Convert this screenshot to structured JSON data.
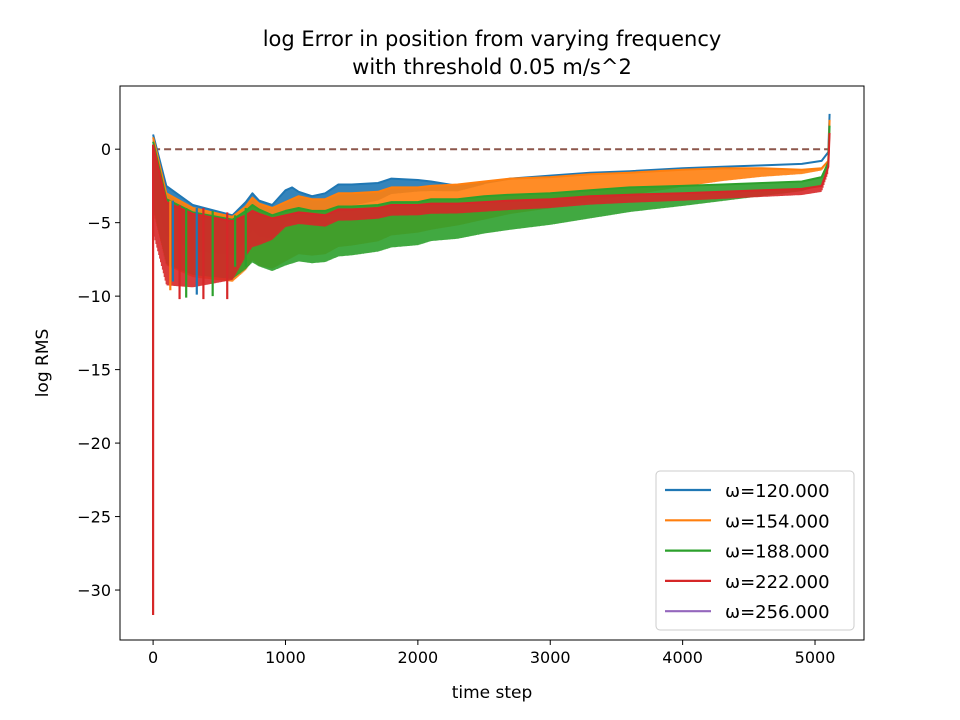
{
  "chart_data": {
    "type": "line",
    "title_line1": "log Error in position from varying frequency",
    "title_line2": "with threshold 0.05 m/s^2",
    "xlabel": "time step",
    "ylabel": "log RMS",
    "xlim": [
      -250,
      5370
    ],
    "ylim": [
      -33.4,
      4.3
    ],
    "xticks": [
      0,
      1000,
      2000,
      3000,
      4000,
      5000
    ],
    "xtick_labels": [
      "0",
      "1000",
      "2000",
      "3000",
      "4000",
      "5000"
    ],
    "yticks": [
      0,
      -5,
      -10,
      -15,
      -20,
      -25,
      -30
    ],
    "ytick_labels": [
      "0",
      "−5",
      "−10",
      "−15",
      "−20",
      "−25",
      "−30"
    ],
    "legend_position": "lower-right",
    "reference_line": {
      "y": 0,
      "x": [
        0,
        5100
      ],
      "color": "#8c564b",
      "style": "dashed"
    },
    "series": [
      {
        "name": "ω=120.000",
        "color": "#1f77b4",
        "x": [
          0,
          100,
          300,
          600,
          700,
          750,
          800,
          900,
          1000,
          1050,
          1100,
          1200,
          1300,
          1400,
          1500,
          1700,
          1800,
          2000,
          2100,
          2300,
          2500,
          2700,
          3000,
          3300,
          3600,
          4000,
          4300,
          4600,
          4900,
          5050,
          5100,
          5110
        ],
        "y": [
          1.0,
          -2.5,
          -3.8,
          -4.5,
          -3.6,
          -3.0,
          -3.5,
          -3.8,
          -2.8,
          -2.6,
          -2.9,
          -3.2,
          -3.0,
          -2.4,
          -2.4,
          -2.3,
          -2.0,
          -2.1,
          -2.2,
          -2.5,
          -2.3,
          -2.0,
          -1.8,
          -1.6,
          -1.5,
          -1.3,
          -1.2,
          -1.1,
          -1.0,
          -0.8,
          -0.2,
          2.4
        ],
        "oscillation": {
          "x": [
            0,
            2500
          ],
          "amplitude_low": [
            3.5,
            0.1
          ]
        }
      },
      {
        "name": "ω=154.000",
        "color": "#ff7f0e",
        "x": [
          0,
          100,
          300,
          600,
          700,
          750,
          800,
          900,
          1000,
          1100,
          1200,
          1300,
          1400,
          1500,
          1700,
          1800,
          2000,
          2100,
          2300,
          2500,
          2700,
          3000,
          3300,
          3600,
          4000,
          4300,
          4600,
          4900,
          5050,
          5100,
          5110
        ],
        "y": [
          0.8,
          -3.0,
          -4.0,
          -4.6,
          -3.9,
          -3.3,
          -3.7,
          -4.0,
          -3.6,
          -3.2,
          -3.4,
          -3.4,
          -3.0,
          -3.0,
          -2.9,
          -2.6,
          -2.6,
          -2.5,
          -2.4,
          -2.2,
          -2.0,
          -1.9,
          -1.7,
          -1.6,
          -1.4,
          -1.3,
          -1.3,
          -1.4,
          -1.3,
          -0.8,
          2.0
        ],
        "oscillation": {
          "x": [
            0,
            5100
          ],
          "amplitude_low": [
            5.0,
            0.1
          ]
        }
      },
      {
        "name": "ω=188.000",
        "color": "#2ca02c",
        "x": [
          0,
          100,
          300,
          600,
          700,
          750,
          800,
          900,
          1000,
          1100,
          1200,
          1300,
          1400,
          1500,
          1700,
          1800,
          2000,
          2100,
          2300,
          2500,
          2700,
          3000,
          3300,
          3600,
          4000,
          4300,
          4600,
          4900,
          5050,
          5100,
          5110
        ],
        "y": [
          0.5,
          -3.4,
          -4.3,
          -4.8,
          -4.2,
          -3.8,
          -4.1,
          -4.5,
          -4.2,
          -4.0,
          -4.2,
          -4.2,
          -3.9,
          -3.9,
          -3.8,
          -3.6,
          -3.6,
          -3.4,
          -3.4,
          -3.2,
          -3.1,
          -3.0,
          -2.8,
          -2.6,
          -2.5,
          -2.4,
          -2.3,
          -2.2,
          -1.9,
          -0.9,
          1.6
        ],
        "oscillation": {
          "x": [
            0,
            5100
          ],
          "amplitude_low": [
            4.5,
            0.5
          ]
        }
      },
      {
        "name": "ω=222.000",
        "color": "#d62728",
        "x": [
          0,
          100,
          300,
          600,
          700,
          750,
          800,
          900,
          1000,
          1100,
          1200,
          1300,
          1400,
          1500,
          1700,
          1800,
          2000,
          2100,
          2300,
          2500,
          2700,
          3000,
          3300,
          3600,
          4000,
          4300,
          4600,
          4900,
          5050,
          5100,
          5110
        ],
        "y": [
          0.3,
          -3.6,
          -4.4,
          -4.9,
          -4.5,
          -4.2,
          -4.4,
          -4.7,
          -4.5,
          -4.3,
          -4.4,
          -4.5,
          -4.1,
          -4.1,
          -4.0,
          -3.8,
          -3.8,
          -3.7,
          -3.7,
          -3.6,
          -3.5,
          -3.4,
          -3.2,
          -3.1,
          -3.0,
          -2.9,
          -2.8,
          -2.7,
          -2.5,
          -1.2,
          1.1
        ],
        "oscillation": {
          "x": [
            0,
            600,
            700,
            1000,
            5100
          ],
          "amplitude_low": [
            6.0,
            4.0,
            2.8,
            0.8,
            0.4
          ]
        }
      },
      {
        "name": "ω=256.000",
        "color": "#9467bd",
        "x": [],
        "y": []
      }
    ],
    "spikes": [
      {
        "color": "#d62728",
        "x": 0,
        "y_low": -31.7,
        "y_high": 0.3
      },
      {
        "color": "#1f77b4",
        "x": 150,
        "y_low": -9.0,
        "y_high": -3.5
      },
      {
        "color": "#ff7f0e",
        "x": 130,
        "y_low": -9.6,
        "y_high": -3.5
      },
      {
        "color": "#d62728",
        "x": 200,
        "y_low": -10.2,
        "y_high": -3.8
      },
      {
        "color": "#2ca02c",
        "x": 250,
        "y_low": -10.1,
        "y_high": -4.0
      },
      {
        "color": "#1f77b4",
        "x": 330,
        "y_low": -9.9,
        "y_high": -4.0
      },
      {
        "color": "#d62728",
        "x": 380,
        "y_low": -10.2,
        "y_high": -4.0
      },
      {
        "color": "#2ca02c",
        "x": 450,
        "y_low": -10.0,
        "y_high": -4.2
      },
      {
        "color": "#d62728",
        "x": 560,
        "y_low": -10.2,
        "y_high": -4.3
      },
      {
        "color": "#2ca02c",
        "x": 620,
        "y_low": -8.0,
        "y_high": -4.5
      },
      {
        "color": "#2ca02c",
        "x": 700,
        "y_low": -8.0,
        "y_high": -4.0
      }
    ]
  }
}
